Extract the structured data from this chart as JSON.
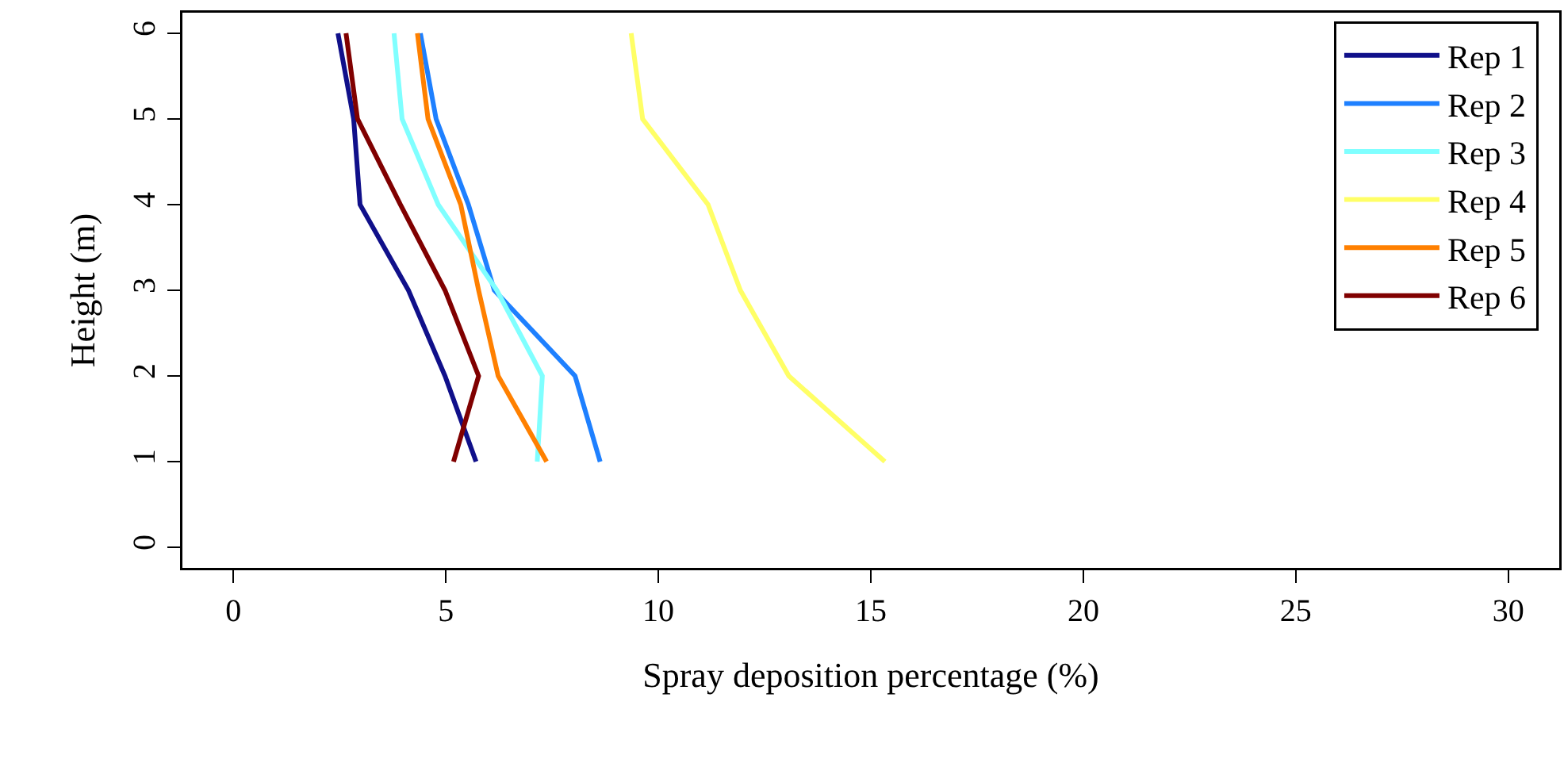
{
  "chart_data": {
    "type": "line",
    "xlabel": "Spray deposition percentage (%)",
    "ylabel": "Height (m)",
    "series": [
      {
        "name": "Rep 1",
        "color": "#10108a",
        "x": [
          2.46,
          2.83,
          2.98,
          4.12,
          4.98,
          5.71
        ],
        "values": [
          6,
          5,
          4,
          3,
          2,
          1
        ]
      },
      {
        "name": "Rep 2",
        "color": "#1e80ff",
        "x": [
          4.4,
          4.77,
          5.53,
          6.14,
          8.04,
          8.63
        ],
        "values": [
          6,
          5,
          4,
          3,
          2,
          1
        ]
      },
      {
        "name": "Rep 3",
        "color": "#80ffff",
        "x": [
          3.78,
          3.97,
          4.82,
          6.2,
          7.27,
          7.15
        ],
        "values": [
          6,
          5,
          4,
          3,
          2,
          1
        ]
      },
      {
        "name": "Rep 4",
        "color": "#ffff66",
        "x": [
          9.36,
          9.63,
          11.17,
          11.93,
          13.07,
          15.33
        ],
        "values": [
          6,
          5,
          4,
          3,
          2,
          1
        ]
      },
      {
        "name": "Rep 5",
        "color": "#ff8000",
        "x": [
          4.33,
          4.58,
          5.35,
          5.77,
          6.23,
          7.37
        ],
        "values": [
          6,
          5,
          4,
          3,
          2,
          1
        ]
      },
      {
        "name": "Rep 6",
        "color": "#800000",
        "x": [
          2.65,
          2.92,
          3.93,
          4.98,
          5.77,
          5.18
        ],
        "values": [
          6,
          5,
          4,
          3,
          2,
          1
        ]
      }
    ],
    "xlim": [
      -1.2,
      31.2
    ],
    "xticks": [
      0,
      5,
      10,
      15,
      20,
      25,
      30
    ],
    "ylim": [
      -0.24,
      6.24
    ],
    "yticks": [
      0,
      1,
      2,
      3,
      4,
      5,
      6
    ],
    "grid": false,
    "legend": "top right",
    "marker": "none",
    "line_style": "solid"
  }
}
